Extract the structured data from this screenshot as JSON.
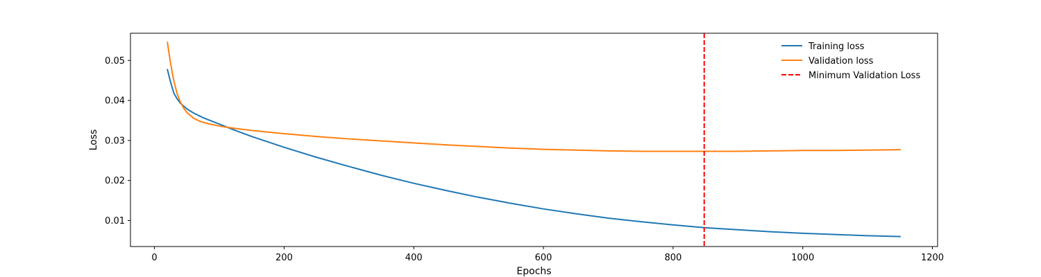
{
  "chart_data": {
    "type": "line",
    "title": "",
    "xlabel": "Epochs",
    "ylabel": "Loss",
    "xlim": [
      -37,
      1208
    ],
    "ylim": [
      0.0035,
      0.0568
    ],
    "xticks": [
      0,
      200,
      400,
      600,
      800,
      1000,
      1200
    ],
    "yticks": [
      0.01,
      0.02,
      0.03,
      0.04,
      0.05
    ],
    "xtick_labels": [
      "0",
      "200",
      "400",
      "600",
      "800",
      "1000",
      "1200"
    ],
    "ytick_labels": [
      "0.01",
      "0.02",
      "0.03",
      "0.04",
      "0.05"
    ],
    "grid": false,
    "legend_position": "top-right",
    "series": [
      {
        "name": "Training loss",
        "color": "#1f77b4",
        "style": "solid",
        "x": [
          20,
          25,
          30,
          35,
          40,
          50,
          60,
          75,
          100,
          125,
          150,
          200,
          250,
          300,
          350,
          400,
          450,
          500,
          550,
          600,
          650,
          700,
          750,
          800,
          850,
          900,
          950,
          1000,
          1050,
          1100,
          1150
        ],
        "y": [
          0.0477,
          0.0445,
          0.0418,
          0.0404,
          0.0393,
          0.0379,
          0.0369,
          0.0357,
          0.0341,
          0.0325,
          0.031,
          0.0283,
          0.0258,
          0.0235,
          0.0213,
          0.0193,
          0.0175,
          0.0158,
          0.0143,
          0.0129,
          0.0117,
          0.0106,
          0.0097,
          0.0089,
          0.0082,
          0.0077,
          0.0072,
          0.0068,
          0.0065,
          0.0062,
          0.006
        ]
      },
      {
        "name": "Validation loss",
        "color": "#ff7f0e",
        "style": "solid",
        "x": [
          20,
          25,
          30,
          35,
          40,
          45,
          50,
          60,
          70,
          80,
          100,
          125,
          150,
          200,
          250,
          300,
          350,
          400,
          450,
          500,
          550,
          600,
          650,
          700,
          750,
          800,
          850,
          900,
          950,
          1000,
          1050,
          1100,
          1150
        ],
        "y": [
          0.0545,
          0.0491,
          0.0448,
          0.0417,
          0.0396,
          0.0381,
          0.037,
          0.0356,
          0.0348,
          0.0343,
          0.0336,
          0.033,
          0.0325,
          0.0317,
          0.031,
          0.0304,
          0.0299,
          0.0294,
          0.0289,
          0.0285,
          0.0281,
          0.0278,
          0.0276,
          0.0274,
          0.0273,
          0.0273,
          0.0273,
          0.0273,
          0.0274,
          0.0275,
          0.0275,
          0.0276,
          0.0277
        ]
      }
    ],
    "vlines": [
      {
        "name": "Minimum Validation Loss",
        "x": 848,
        "color": "#ff0000",
        "style": "dashed"
      }
    ]
  }
}
